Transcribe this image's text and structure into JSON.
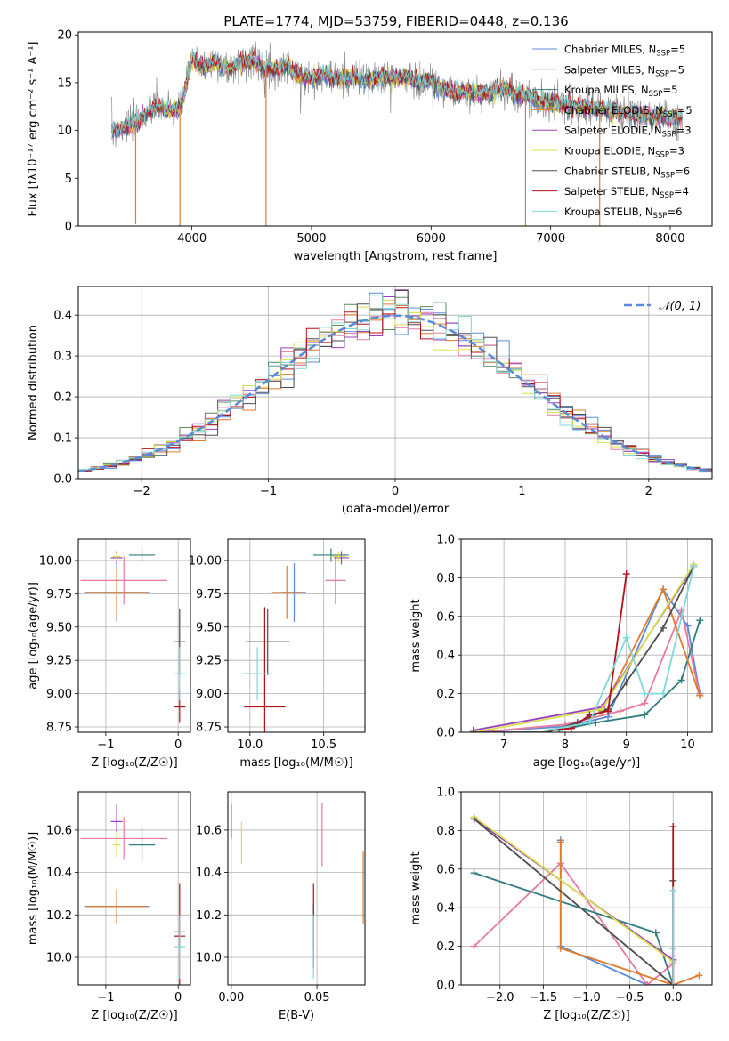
{
  "figure": {
    "title": "PLATE=1774, MJD=53759, FIBERID=0448, z=0.136"
  },
  "colors": {
    "Chabrier MILES": "#5b8bd8",
    "Salpeter MILES": "#e87a9e",
    "Kroupa MILES": "#2e7d7d",
    "Chabrier ELODIE": "#e07b2c",
    "Salpeter ELODIE": "#9b3fbf",
    "Kroupa ELODIE": "#d8e04a",
    "Chabrier STELIB": "#4d4d4d",
    "Salpeter STELIB": "#b3121b",
    "Kroupa STELIB": "#7fd8d8",
    "Kroupa MILES hist": "#5a8a5a",
    "normal": "#5b8bd8"
  },
  "chart_data": [
    {
      "id": "spectrum",
      "type": "line",
      "xlabel": "wavelength [Angstrom, rest frame]",
      "ylabel": "Flux [fλ10⁻¹⁷ erg cm⁻² s⁻¹ A⁻¹]",
      "xlim": [
        3050,
        8350
      ],
      "ylim": [
        0,
        20.3
      ],
      "xticks": [
        "4000",
        "5000",
        "6000",
        "7000",
        "8000"
      ],
      "xtick_values": [
        4000,
        5000,
        6000,
        7000,
        8000
      ],
      "yticks": [
        "0",
        "5",
        "10",
        "15",
        "20"
      ],
      "ytick_values": [
        0,
        5,
        10,
        15,
        20
      ],
      "grid": false,
      "legend_position": "right",
      "legend": [
        {
          "label": "Chabrier MILES, N",
          "sub": "SSP",
          "tail": "=5",
          "color": "Chabrier MILES"
        },
        {
          "label": "Salpeter MILES, N",
          "sub": "SSP",
          "tail": "=5",
          "color": "Salpeter MILES"
        },
        {
          "label": "Kroupa MILES, N",
          "sub": "SSP",
          "tail": "=5",
          "color": "Kroupa MILES"
        },
        {
          "label": "Chabrier ELODIE, N",
          "sub": "SSP",
          "tail": "=5",
          "color": "Chabrier ELODIE"
        },
        {
          "label": "Salpeter ELODIE, N",
          "sub": "SSP",
          "tail": "=3",
          "color": "Salpeter ELODIE"
        },
        {
          "label": "Kroupa ELODIE, N",
          "sub": "SSP",
          "tail": "=3",
          "color": "Kroupa ELODIE"
        },
        {
          "label": "Chabrier STELIB, N",
          "sub": "SSP",
          "tail": "=6",
          "color": "Chabrier STELIB"
        },
        {
          "label": "Salpeter STELIB, N",
          "sub": "SSP",
          "tail": "=4",
          "color": "Salpeter STELIB"
        },
        {
          "label": "Kroupa STELIB, N",
          "sub": "SSP",
          "tail": "=6",
          "color": "Kroupa STELIB"
        }
      ],
      "continuum": {
        "x": [
          3330,
          3450,
          3600,
          3700,
          3800,
          3900,
          3950,
          4000,
          4100,
          4200,
          4300,
          4400,
          4500,
          4600,
          4700,
          4800,
          4900,
          5000,
          5100,
          5200,
          5300,
          5400,
          5500,
          5600,
          5700,
          5800,
          5900,
          6000,
          6100,
          6200,
          6300,
          6400,
          6500,
          6600,
          6700,
          6800,
          6900,
          7000,
          7100,
          7200,
          7300,
          7400,
          7500,
          7600,
          7700,
          7800,
          7900,
          8000,
          8100
        ],
        "y": [
          10,
          10.4,
          11.5,
          12.6,
          12.0,
          12.3,
          14.5,
          17.5,
          16.6,
          17.2,
          16.4,
          17.0,
          17.4,
          16.6,
          16.3,
          16.8,
          15.6,
          15.5,
          15.8,
          15.3,
          15.5,
          15.4,
          15.2,
          15.6,
          15.4,
          15.6,
          15.1,
          15.2,
          14.3,
          14.0,
          14.0,
          13.8,
          14.0,
          14.5,
          13.8,
          13.6,
          13.0,
          12.9,
          12.7,
          12.6,
          12.4,
          12.2,
          12.2,
          11.8,
          11.6,
          11.5,
          11.4,
          11.3,
          11.3
        ]
      },
      "dropouts": [
        {
          "x": 3530,
          "y": 0.2
        },
        {
          "x": 3900,
          "y": 0
        },
        {
          "x": 4620,
          "y": 0
        },
        {
          "x": 6790,
          "y": 0
        },
        {
          "x": 7410,
          "y": 0
        }
      ]
    },
    {
      "id": "residual_hist",
      "type": "histogram",
      "xlabel": "(data-model)/error",
      "ylabel": "Normed distribution",
      "xlim": [
        -2.5,
        2.5
      ],
      "ylim": [
        0,
        0.47
      ],
      "xticks": [
        "−2",
        "−1",
        "0",
        "1",
        "2"
      ],
      "xtick_values": [
        -2,
        -1,
        0,
        1,
        2
      ],
      "yticks": [
        "0.0",
        "0.1",
        "0.2",
        "0.3",
        "0.4"
      ],
      "ytick_values": [
        0,
        0.1,
        0.2,
        0.3,
        0.4
      ],
      "grid": true,
      "legend_position": "top-right",
      "legend_label": "𝒩(0, 1)",
      "bin_width": 0.1
    },
    {
      "id": "age_vs_Z",
      "type": "errorbar",
      "xlabel": "Z [log₁₀(Z/Z☉)]",
      "ylabel": "age  [log₁₀(age/yr)]",
      "xlim": [
        -1.38,
        0.17
      ],
      "ylim": [
        8.71,
        10.16
      ],
      "xticks": [
        "−1",
        "0"
      ],
      "xtick_values": [
        -1,
        0
      ],
      "yticks": [
        "8.75",
        "9.00",
        "9.25",
        "9.50",
        "9.75",
        "10.00"
      ],
      "ytick_values": [
        8.75,
        9.0,
        9.25,
        9.5,
        9.75,
        10.0
      ],
      "grid": true,
      "points": [
        {
          "color": "Chabrier MILES",
          "x": -0.85,
          "xerr": 0.45,
          "y": 9.76,
          "yerr": 0.22
        },
        {
          "color": "Salpeter MILES",
          "x": -0.75,
          "xerr": 0.6,
          "y": 9.85,
          "yerr": 0.18
        },
        {
          "color": "Kroupa MILES",
          "x": -0.5,
          "xerr": 0.18,
          "y": 10.04,
          "yerr": 0.05
        },
        {
          "color": "Chabrier ELODIE",
          "x": -0.85,
          "xerr": 0.42,
          "y": 9.76,
          "yerr": 0.18
        },
        {
          "color": "Salpeter ELODIE",
          "x": -0.85,
          "xerr": 0.08,
          "y": 10.02,
          "yerr": 0.05
        },
        {
          "color": "Kroupa ELODIE",
          "x": -0.85,
          "xerr": 0.05,
          "y": 10.03,
          "yerr": 0.03
        },
        {
          "color": "Chabrier STELIB",
          "x": 0.02,
          "xerr": 0.08,
          "y": 9.39,
          "yerr": 0.25
        },
        {
          "color": "Salpeter STELIB",
          "x": 0.02,
          "xerr": 0.08,
          "y": 8.9,
          "yerr": 0.12
        },
        {
          "color": "Kroupa STELIB",
          "x": 0.02,
          "xerr": 0.08,
          "y": 9.15,
          "yerr": 0.2
        }
      ]
    },
    {
      "id": "age_vs_mass",
      "type": "errorbar",
      "xlabel": "mass [log₁₀(M/M☉)]",
      "ylabel": "",
      "xlim": [
        9.85,
        10.78
      ],
      "ylim": [
        8.71,
        10.16
      ],
      "xticks": [
        "10.0",
        "10.5"
      ],
      "xtick_values": [
        10.0,
        10.5
      ],
      "yticks": [
        "8.75",
        "9.00",
        "9.25",
        "9.50",
        "9.75",
        "10.00"
      ],
      "ytick_values": [
        8.75,
        9.0,
        9.25,
        9.5,
        9.75,
        10.0
      ],
      "grid": true,
      "points": [
        {
          "color": "Chabrier MILES",
          "x": 10.3,
          "xerr": 0.08,
          "y": 9.76,
          "yerr": 0.22
        },
        {
          "color": "Salpeter MILES",
          "x": 10.58,
          "xerr": 0.07,
          "y": 9.85,
          "yerr": 0.18
        },
        {
          "color": "Kroupa MILES",
          "x": 10.55,
          "xerr": 0.12,
          "y": 10.04,
          "yerr": 0.05
        },
        {
          "color": "Chabrier ELODIE",
          "x": 10.25,
          "xerr": 0.1,
          "y": 9.76,
          "yerr": 0.2
        },
        {
          "color": "Salpeter ELODIE",
          "x": 10.62,
          "xerr": 0.05,
          "y": 10.02,
          "yerr": 0.05
        },
        {
          "color": "Kroupa ELODIE",
          "x": 10.6,
          "xerr": 0.05,
          "y": 10.03,
          "yerr": 0.04
        },
        {
          "color": "Chabrier STELIB",
          "x": 10.12,
          "xerr": 0.15,
          "y": 9.39,
          "yerr": 0.25
        },
        {
          "color": "Salpeter STELIB",
          "x": 10.1,
          "xerr": 0.14,
          "y": 8.9,
          "yerr": 0.75
        },
        {
          "color": "Kroupa STELIB",
          "x": 10.05,
          "xerr": 0.1,
          "y": 9.15,
          "yerr": 0.2
        }
      ]
    },
    {
      "id": "weight_vs_age",
      "type": "line",
      "xlabel": "age  [log₁₀(age/yr)]",
      "ylabel": "mass weight",
      "xlim": [
        6.3,
        10.4
      ],
      "ylim": [
        0,
        1.0
      ],
      "xticks": [
        "7",
        "8",
        "9",
        "10"
      ],
      "xtick_values": [
        7,
        8,
        9,
        10
      ],
      "yticks": [
        "0.0",
        "0.2",
        "0.4",
        "0.6",
        "0.8",
        "1.0"
      ],
      "ytick_values": [
        0,
        0.2,
        0.4,
        0.6,
        0.8,
        1.0
      ],
      "grid": true,
      "series": [
        {
          "color": "Chabrier MILES",
          "x": [
            6.5,
            8.0,
            8.7,
            9.6,
            10.0,
            10.2
          ],
          "y": [
            0.0,
            0.03,
            0.08,
            0.74,
            0.55,
            0.2
          ]
        },
        {
          "color": "Salpeter MILES",
          "x": [
            6.6,
            8.0,
            8.9,
            9.3,
            9.9,
            10.2
          ],
          "y": [
            0.0,
            0.04,
            0.11,
            0.15,
            0.63,
            0.19
          ]
        },
        {
          "color": "Kroupa MILES",
          "x": [
            7.9,
            8.5,
            9.3,
            9.9,
            10.2
          ],
          "y": [
            0.01,
            0.05,
            0.09,
            0.27,
            0.58
          ]
        },
        {
          "color": "Chabrier ELODIE",
          "x": [
            8.6,
            9.6,
            10.2
          ],
          "y": [
            0.11,
            0.74,
            0.19
          ]
        },
        {
          "color": "Salpeter ELODIE",
          "x": [
            6.5,
            8.6,
            10.1
          ],
          "y": [
            0.01,
            0.13,
            0.86
          ]
        },
        {
          "color": "Kroupa ELODIE",
          "x": [
            6.5,
            8.6,
            10.1
          ],
          "y": [
            0.0,
            0.12,
            0.87
          ]
        },
        {
          "color": "Chabrier STELIB",
          "x": [
            6.5,
            7.7,
            8.2,
            8.7,
            9.0,
            9.6,
            10.1
          ],
          "y": [
            0.0,
            0.0,
            0.05,
            0.12,
            0.26,
            0.54,
            0.86
          ]
        },
        {
          "color": "Salpeter STELIB",
          "x": [
            7.7,
            8.1,
            8.4,
            8.7,
            9.0
          ],
          "y": [
            0.01,
            0.02,
            0.09,
            0.11,
            0.82
          ]
        },
        {
          "color": "Kroupa STELIB",
          "x": [
            7.7,
            8.4,
            9.0,
            9.3,
            9.6,
            10.1
          ],
          "y": [
            0.01,
            0.05,
            0.49,
            0.2,
            0.2,
            0.86
          ]
        }
      ]
    },
    {
      "id": "mass_vs_Z",
      "type": "errorbar",
      "xlabel": "Z [log₁₀(Z/Z☉)]",
      "ylabel": "mass [log₁₀(M/M☉)]",
      "xlim": [
        -1.38,
        0.17
      ],
      "ylim": [
        9.87,
        10.78
      ],
      "xticks": [
        "−1",
        "0"
      ],
      "xtick_values": [
        -1,
        0
      ],
      "yticks": [
        "10.0",
        "10.2",
        "10.4",
        "10.6"
      ],
      "ytick_values": [
        10.0,
        10.2,
        10.4,
        10.6
      ],
      "grid": true,
      "points": [
        {
          "color": "Chabrier MILES",
          "x": -0.85,
          "xerr": 0.45,
          "y": 10.24,
          "yerr": 0.08
        },
        {
          "color": "Salpeter MILES",
          "x": -0.75,
          "xerr": 0.6,
          "y": 10.56,
          "yerr": 0.1
        },
        {
          "color": "Kroupa MILES",
          "x": -0.5,
          "xerr": 0.18,
          "y": 10.53,
          "yerr": 0.08
        },
        {
          "color": "Chabrier ELODIE",
          "x": -0.85,
          "xerr": 0.42,
          "y": 10.24,
          "yerr": 0.08
        },
        {
          "color": "Salpeter ELODIE",
          "x": -0.85,
          "xerr": 0.08,
          "y": 10.64,
          "yerr": 0.08
        },
        {
          "color": "Kroupa ELODIE",
          "x": -0.85,
          "xerr": 0.05,
          "y": 10.53,
          "yerr": 0.06
        },
        {
          "color": "Chabrier STELIB",
          "x": 0.02,
          "xerr": 0.08,
          "y": 10.12,
          "yerr": 0.08
        },
        {
          "color": "Salpeter STELIB",
          "x": 0.02,
          "xerr": 0.08,
          "y": 10.1,
          "yerr": 0.25
        },
        {
          "color": "Kroupa STELIB",
          "x": 0.02,
          "xerr": 0.08,
          "y": 10.05,
          "yerr": 0.15
        }
      ]
    },
    {
      "id": "mass_vs_EBV",
      "type": "errorbar",
      "xlabel": "E(B-V)",
      "ylabel": "",
      "xlim": [
        -0.002,
        0.078
      ],
      "ylim": [
        9.87,
        10.78
      ],
      "xticks": [
        "0.00",
        "0.05"
      ],
      "xtick_values": [
        0.0,
        0.05
      ],
      "yticks": [
        "10.0",
        "10.2",
        "10.4",
        "10.6"
      ],
      "ytick_values": [
        10.0,
        10.2,
        10.4,
        10.6
      ],
      "grid": true,
      "points": [
        {
          "color": "Chabrier MILES",
          "x": 0.0,
          "xerr": 0,
          "y": 10.64,
          "yerr": 0.08
        },
        {
          "color": "Salpeter MILES",
          "x": 0.053,
          "xerr": 0,
          "y": 10.58,
          "yerr": 0.15
        },
        {
          "color": "Salpeter ELODIE",
          "x": 0.0,
          "xerr": 0,
          "y": 10.64,
          "yerr": 0.08
        },
        {
          "color": "Kroupa ELODIE",
          "x": 0.006,
          "xerr": 0,
          "y": 10.54,
          "yerr": 0.1
        },
        {
          "color": "Chabrier ELODIE",
          "x": 0.077,
          "xerr": 0,
          "y": 10.33,
          "yerr": 0.17
        },
        {
          "color": "Salpeter STELIB",
          "x": 0.048,
          "xerr": 0,
          "y": 10.2,
          "yerr": 0.15
        },
        {
          "color": "Chabrier STELIB",
          "x": 0.048,
          "xerr": 0,
          "y": 10.1,
          "yerr": 0.15
        },
        {
          "color": "Kroupa STELIB",
          "x": 0.048,
          "xerr": 0,
          "y": 10.05,
          "yerr": 0.15
        }
      ]
    },
    {
      "id": "weight_vs_Z",
      "type": "line",
      "xlabel": "Z [log₁₀(Z/Z☉)]",
      "ylabel": "mass weight",
      "xlim": [
        -2.45,
        0.45
      ],
      "ylim": [
        0,
        1.0
      ],
      "xticks": [
        "−2.0",
        "−1.5",
        "−1.0",
        "−0.5",
        "0.0"
      ],
      "xtick_values": [
        -2.0,
        -1.5,
        -1.0,
        -0.5,
        0.0
      ],
      "yticks": [
        "0.0",
        "0.2",
        "0.4",
        "0.6",
        "0.8",
        "1.0"
      ],
      "ytick_values": [
        0,
        0.2,
        0.4,
        0.6,
        0.8,
        1.0
      ],
      "grid": true,
      "series": [
        {
          "color": "Chabrier MILES",
          "x": [
            -1.3,
            -1.3,
            -0.3,
            0.0,
            0.0
          ],
          "y": [
            0.75,
            0.2,
            0.0,
            0.0,
            0.19
          ]
        },
        {
          "color": "Salpeter MILES",
          "x": [
            -2.3,
            -1.3,
            -0.3,
            0.0,
            0.0
          ],
          "y": [
            0.2,
            0.63,
            0.0,
            0.11,
            0.15
          ]
        },
        {
          "color": "Kroupa MILES",
          "x": [
            -2.3,
            -0.2,
            0.0
          ],
          "y": [
            0.58,
            0.27,
            0.0
          ]
        },
        {
          "color": "Chabrier ELODIE",
          "x": [
            -1.3,
            -1.3,
            0.0,
            0.3
          ],
          "y": [
            0.74,
            0.19,
            0.0,
            0.05
          ]
        },
        {
          "color": "Salpeter ELODIE",
          "x": [
            -2.3,
            0.0,
            0.0
          ],
          "y": [
            0.86,
            0.13,
            0.0
          ]
        },
        {
          "color": "Kroupa ELODIE",
          "x": [
            -2.3,
            0.0,
            0.0
          ],
          "y": [
            0.87,
            0.12,
            0.0
          ]
        },
        {
          "color": "Chabrier STELIB",
          "x": [
            -2.3,
            0.0,
            0.0
          ],
          "y": [
            0.86,
            0.0,
            0.54
          ]
        },
        {
          "color": "Salpeter STELIB",
          "x": [
            0.0,
            0.0
          ],
          "y": [
            0.0,
            0.82
          ]
        },
        {
          "color": "Kroupa STELIB",
          "x": [
            0.0,
            0.0
          ],
          "y": [
            0.0,
            0.49
          ]
        }
      ]
    }
  ]
}
